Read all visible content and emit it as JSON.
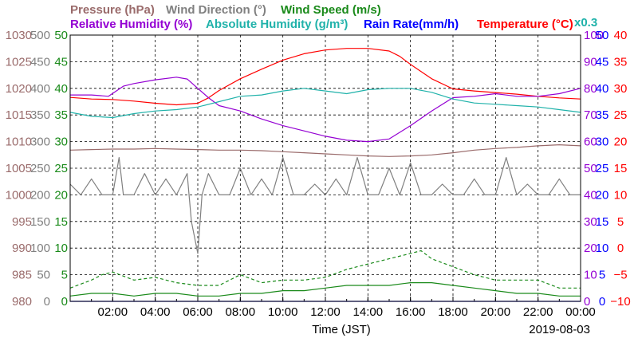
{
  "chart_data": {
    "type": "line",
    "date": "2019-08-03",
    "xlabel": "Time (JST)",
    "x_ticks": [
      "02:00",
      "04:00",
      "06:00",
      "08:00",
      "10:00",
      "12:00",
      "14:00",
      "16:00",
      "18:00",
      "20:00",
      "22:00",
      "00:00"
    ],
    "x_range_hours": [
      0,
      24
    ],
    "grid": true,
    "legend_row1": [
      {
        "key": "pressure",
        "text": "Pressure (hPa)",
        "color": "#9a6b6b"
      },
      {
        "key": "wind_direction",
        "text": "Wind Direction (°)",
        "color": "#808080"
      },
      {
        "key": "wind_speed",
        "text": "Wind Speed (m/s)",
        "color": "#1a8a1a"
      }
    ],
    "legend_row2": [
      {
        "key": "relative_humidity",
        "text": "Relative Humidity (%)",
        "color": "#9400d3"
      },
      {
        "key": "absolute_humidity",
        "text": "Absolute Humidity (g/m³)",
        "color": "#20b2aa"
      },
      {
        "key": "rain_rate",
        "text": "Rain Rate(mm/h)",
        "color": "#0000ff"
      },
      {
        "key": "temperature",
        "text": "Temperature  (°C)",
        "color": "#ff0000"
      }
    ],
    "abs_humidity_scale_note": "x0.3",
    "axes": [
      {
        "key": "pressure",
        "side": "left",
        "color": "#9a6b6b",
        "range": [
          980,
          1030
        ],
        "ticks": [
          "980",
          "985",
          "990",
          "995",
          "1000",
          "1005",
          "1010",
          "1015",
          "1020",
          "1025",
          "1030"
        ]
      },
      {
        "key": "wind_direction",
        "side": "left",
        "color": "#808080",
        "range": [
          0,
          500
        ],
        "ticks": [
          "0",
          "50",
          "100",
          "150",
          "200",
          "250",
          "300",
          "350",
          "400",
          "450",
          "500"
        ]
      },
      {
        "key": "wind_speed",
        "side": "left",
        "color": "#1a8a1a",
        "range": [
          0,
          50
        ],
        "ticks": [
          "0",
          "5",
          "10",
          "15",
          "20",
          "25",
          "30",
          "35",
          "40",
          "45",
          "50"
        ]
      },
      {
        "key": "relative_humidity",
        "side": "right",
        "color": "#9400d3",
        "range": [
          0,
          100
        ],
        "ticks": [
          "0",
          "10",
          "20",
          "30",
          "40",
          "50",
          "60",
          "70",
          "80",
          "90",
          "100"
        ]
      },
      {
        "key": "rain_rate",
        "side": "right",
        "color": "#0000ff",
        "range": [
          0,
          50
        ],
        "ticks": [
          "0",
          "5",
          "10",
          "15",
          "20",
          "25",
          "30",
          "35",
          "40",
          "45",
          "50"
        ]
      },
      {
        "key": "temperature",
        "side": "right",
        "color": "#ff0000",
        "range": [
          -10,
          40
        ],
        "ticks": [
          "−10",
          "−5",
          "0",
          "5",
          "10",
          "15",
          "20",
          "25",
          "30",
          "35",
          "40"
        ]
      }
    ],
    "series": [
      {
        "name": "Pressure (hPa)",
        "axis": "pressure",
        "color": "#9a6b6b",
        "dash": "",
        "x": [
          0,
          1,
          2,
          3,
          4,
          5,
          6,
          7,
          8,
          9,
          10,
          11,
          12,
          13,
          14,
          15,
          16,
          17,
          18,
          19,
          20,
          21,
          22,
          23,
          24
        ],
        "y": [
          1008.4,
          1008.5,
          1008.6,
          1008.6,
          1008.7,
          1008.6,
          1008.5,
          1008.4,
          1008.4,
          1008.3,
          1008.1,
          1007.9,
          1007.7,
          1007.5,
          1007.3,
          1007.2,
          1007.3,
          1007.5,
          1007.9,
          1008.4,
          1008.7,
          1008.9,
          1009.2,
          1009.4,
          1009.2
        ]
      },
      {
        "name": "Temperature (°C)",
        "axis": "temperature",
        "color": "#ff0000",
        "dash": "",
        "x": [
          0,
          1,
          2,
          3,
          4,
          5,
          6,
          6.5,
          7,
          8,
          9,
          10,
          11,
          12,
          13,
          14,
          15,
          15.5,
          16,
          17,
          18,
          19,
          20,
          21,
          22,
          23,
          24
        ],
        "y": [
          28.3,
          28.0,
          27.9,
          27.6,
          27.2,
          26.9,
          27.2,
          28.2,
          29.6,
          31.8,
          33.6,
          35.3,
          36.5,
          37.2,
          37.5,
          37.5,
          37.0,
          36.0,
          34.5,
          31.8,
          29.9,
          29.5,
          29.2,
          28.9,
          28.5,
          28.2,
          28.0
        ]
      },
      {
        "name": "Relative Humidity (%)",
        "axis": "relative_humidity",
        "color": "#9400d3",
        "dash": "",
        "x": [
          0,
          1,
          1.8,
          2.5,
          3,
          4,
          5,
          5.5,
          6,
          6.5,
          7,
          8,
          9,
          10,
          11,
          12,
          13,
          14,
          15,
          16,
          17,
          18,
          19,
          20,
          21,
          22,
          23,
          24
        ],
        "y": [
          77.5,
          77.5,
          77.0,
          80.8,
          81.8,
          83.2,
          84.2,
          83.5,
          80.0,
          76.5,
          73.5,
          71.5,
          68.5,
          66.0,
          64.0,
          62.0,
          60.5,
          60.0,
          61.0,
          66.0,
          71.5,
          76.5,
          77.0,
          78.0,
          77.0,
          77.0,
          78.0,
          80.0
        ]
      },
      {
        "name": "Absolute Humidity (g/m³) x0.3",
        "axis": "relative_humidity",
        "color": "#20b2aa",
        "dash": "",
        "x": [
          0,
          1,
          2,
          3,
          4,
          5,
          6,
          7,
          8,
          9,
          10,
          11,
          12,
          13,
          14,
          15,
          16,
          17,
          18,
          19,
          20,
          21,
          22,
          23,
          24
        ],
        "y": [
          71.0,
          69.5,
          69.0,
          70.5,
          71.5,
          72.0,
          73.0,
          75.0,
          77.0,
          77.5,
          79.0,
          80.0,
          79.0,
          78.0,
          79.5,
          80.0,
          80.0,
          78.5,
          76.0,
          74.5,
          74.0,
          73.5,
          73.0,
          72.0,
          71.0
        ]
      },
      {
        "name": "Wind Direction (°)",
        "axis": "wind_direction",
        "color": "#808080",
        "dash": "",
        "x": [
          0,
          0.5,
          1,
          1.5,
          2,
          2.3,
          2.5,
          3,
          3.5,
          4,
          4.5,
          5,
          5.5,
          5.7,
          6,
          6.2,
          6.5,
          7,
          7.5,
          8,
          8.5,
          9,
          9.5,
          10,
          10.5,
          11,
          11.5,
          12,
          12.5,
          13,
          13.5,
          14,
          14.5,
          15,
          15.5,
          16,
          16.5,
          17,
          17.5,
          18,
          18.5,
          19,
          19.5,
          20,
          20.5,
          21,
          21.5,
          22,
          22.5,
          23,
          23.5,
          24
        ],
        "y": [
          220,
          200,
          230,
          200,
          200,
          270,
          200,
          200,
          240,
          200,
          230,
          200,
          240,
          150,
          90,
          200,
          240,
          200,
          200,
          250,
          200,
          230,
          200,
          270,
          200,
          200,
          220,
          200,
          230,
          200,
          270,
          200,
          200,
          250,
          200,
          260,
          200,
          200,
          220,
          200,
          200,
          230,
          200,
          200,
          270,
          200,
          220,
          200,
          200,
          230,
          200,
          200
        ]
      },
      {
        "name": "Wind Speed (m/s) max",
        "axis": "wind_speed",
        "color": "#1a8a1a",
        "dash": "4,3",
        "x": [
          0,
          1,
          1.5,
          2,
          3,
          4,
          5,
          6,
          7,
          8,
          9,
          10,
          11,
          12,
          13,
          14,
          15,
          16,
          16.5,
          17,
          18,
          19,
          20,
          21,
          22,
          23,
          24
        ],
        "y": [
          2.5,
          4.0,
          5.0,
          5.5,
          4.0,
          4.5,
          3.5,
          3.0,
          3.0,
          5.0,
          3.5,
          4.0,
          4.0,
          4.5,
          6.0,
          7.0,
          8.0,
          9.0,
          9.5,
          8.0,
          6.5,
          5.0,
          4.0,
          4.0,
          4.0,
          2.5,
          2.5
        ]
      },
      {
        "name": "Wind Speed (m/s) avg",
        "axis": "wind_speed",
        "color": "#1a8a1a",
        "dash": "",
        "x": [
          0,
          1,
          2,
          3,
          4,
          5,
          6,
          7,
          8,
          9,
          10,
          11,
          12,
          13,
          14,
          15,
          16,
          17,
          18,
          19,
          20,
          21,
          22,
          23,
          24
        ],
        "y": [
          1.0,
          1.5,
          1.5,
          1.0,
          1.5,
          1.5,
          1.0,
          1.0,
          1.5,
          1.5,
          2.0,
          2.0,
          2.5,
          3.0,
          3.0,
          3.0,
          3.5,
          3.5,
          3.0,
          2.5,
          2.0,
          1.5,
          1.5,
          1.0,
          1.0
        ]
      },
      {
        "name": "Rain Rate(mm/h)",
        "axis": "rain_rate",
        "color": "#0000ff",
        "dash": "",
        "x": [
          0,
          24
        ],
        "y": [
          0,
          0
        ]
      }
    ]
  }
}
